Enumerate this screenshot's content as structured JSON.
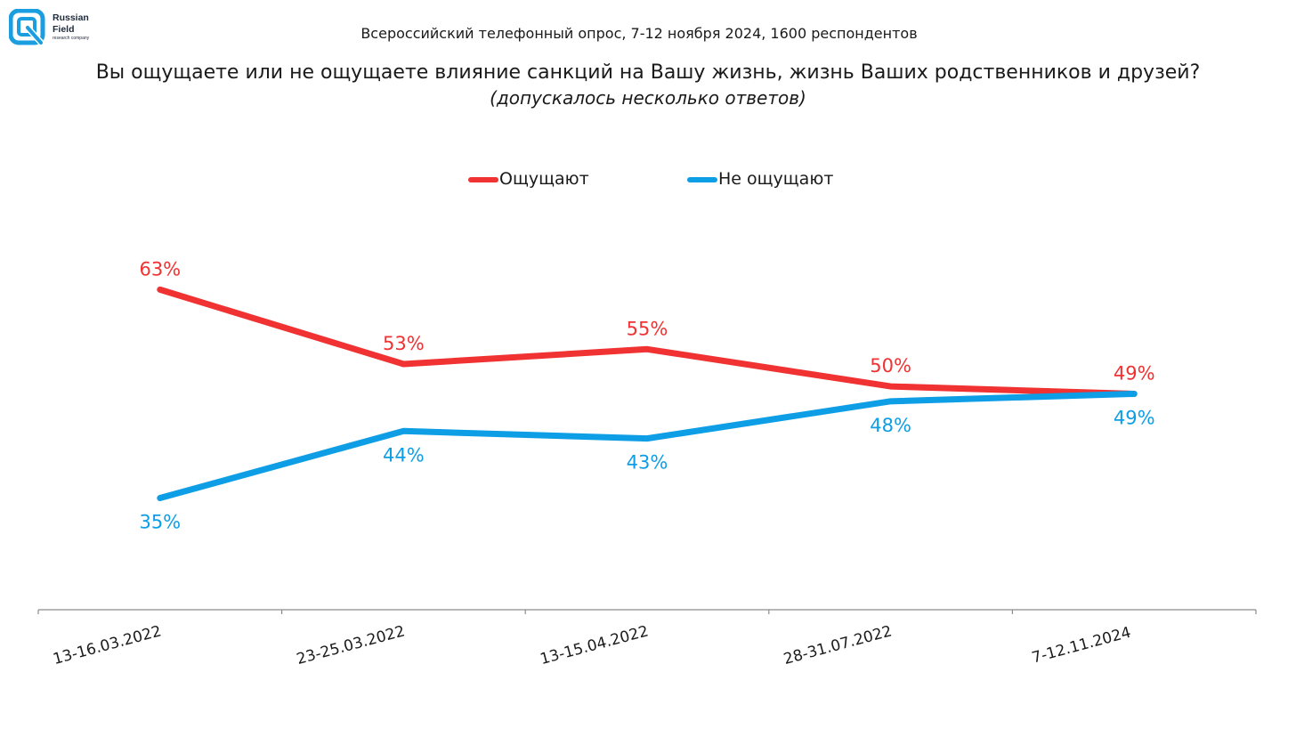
{
  "brand": {
    "line1": "Russian",
    "line2": "Field",
    "tagline": "research company",
    "color": "#1a9ee0"
  },
  "header": {
    "survey": "Всероссийский телефонный опрос, 7-12 ноября 2024, 1600 респондентов",
    "question": "Вы ощущаете или не ощущаете влияние санкций на Вашу жизнь, жизнь Ваших родственников и друзей?",
    "note": "(допускалось несколько ответов)"
  },
  "chart_data": {
    "type": "line",
    "categories": [
      "13-16.03.2022",
      "23-25.03.2022",
      "13-15.04.2022",
      "28-31.07.2022",
      "7-12.11.2024"
    ],
    "series": [
      {
        "name": "Ощущают",
        "values": [
          63,
          53,
          55,
          50,
          49
        ],
        "labels": [
          "63%",
          "53%",
          "55%",
          "50%",
          "49%"
        ],
        "color": "#f03232"
      },
      {
        "name": "Не ощущают",
        "values": [
          35,
          44,
          43,
          48,
          49
        ],
        "labels": [
          "35%",
          "44%",
          "43%",
          "48%",
          "49%"
        ],
        "color": "#0d9ee6"
      }
    ],
    "ylim": [
      20,
      75
    ],
    "unit": "%",
    "grid": false,
    "legend_position": "top-center"
  }
}
